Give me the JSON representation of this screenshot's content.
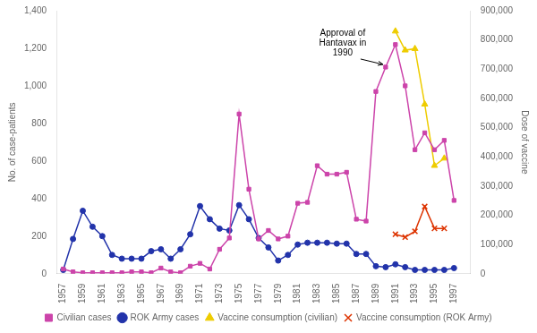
{
  "chart_data": {
    "type": "line",
    "x": [
      1957,
      1958,
      1959,
      1960,
      1961,
      1962,
      1963,
      1964,
      1965,
      1966,
      1967,
      1968,
      1969,
      1970,
      1971,
      1972,
      1973,
      1974,
      1975,
      1976,
      1977,
      1978,
      1979,
      1980,
      1981,
      1982,
      1983,
      1984,
      1985,
      1986,
      1987,
      1988,
      1989,
      1990,
      1991,
      1992,
      1993,
      1994,
      1995,
      1996,
      1997,
      1998
    ],
    "series": [
      {
        "name": "Civilian cases",
        "color": "#cc44aa",
        "marker": "square",
        "values": [
          25,
          10,
          5,
          5,
          5,
          5,
          5,
          10,
          10,
          5,
          30,
          10,
          5,
          40,
          55,
          25,
          130,
          190,
          850,
          450,
          185,
          230,
          185,
          200,
          375,
          380,
          575,
          530,
          530,
          540,
          290,
          280,
          970,
          1100,
          1220,
          1000,
          660,
          750,
          660,
          710,
          390,
          null
        ]
      },
      {
        "name": "ROK Army cases",
        "color": "#2233aa",
        "marker": "circle",
        "values": [
          20,
          185,
          335,
          250,
          200,
          100,
          80,
          80,
          80,
          120,
          130,
          80,
          130,
          210,
          360,
          290,
          240,
          230,
          365,
          290,
          190,
          140,
          70,
          100,
          155,
          165,
          165,
          165,
          160,
          160,
          105,
          105,
          40,
          35,
          50,
          35,
          20,
          20,
          20,
          20,
          30,
          null
        ]
      },
      {
        "name": "Vaccine consumption (civilian)",
        "color": "#eecc00",
        "marker": "triangle",
        "axis": "y2",
        "values": [
          null,
          null,
          null,
          null,
          null,
          null,
          null,
          null,
          null,
          null,
          null,
          null,
          null,
          null,
          null,
          null,
          null,
          null,
          null,
          null,
          null,
          null,
          null,
          null,
          null,
          null,
          null,
          null,
          null,
          null,
          null,
          null,
          null,
          null,
          830000,
          765000,
          770000,
          580000,
          370000,
          395000,
          null,
          null
        ]
      },
      {
        "name": "Vaccine consumption (ROK Army)",
        "color": "#dd3300",
        "marker": "x",
        "axis": "y2",
        "values": [
          null,
          null,
          null,
          null,
          null,
          null,
          null,
          null,
          null,
          null,
          null,
          null,
          null,
          null,
          null,
          null,
          null,
          null,
          null,
          null,
          null,
          null,
          null,
          null,
          null,
          null,
          null,
          null,
          null,
          null,
          null,
          null,
          null,
          null,
          135000,
          125000,
          145000,
          230000,
          155000,
          155000,
          null,
          null
        ]
      }
    ],
    "xlim": [
      1956.3,
      1998.7
    ],
    "xticks": [
      1957,
      1959,
      1961,
      1963,
      1965,
      1967,
      1969,
      1971,
      1973,
      1975,
      1977,
      1979,
      1981,
      1983,
      1985,
      1987,
      1989,
      1991,
      1993,
      1995,
      1997
    ],
    "ylabel": "No. of case-patients",
    "ylim": [
      0,
      1400
    ],
    "yticks": [
      0,
      200,
      400,
      600,
      800,
      {
        "value": 1000,
        "label": "1,000"
      },
      {
        "value": 1200,
        "label": "1,200"
      },
      {
        "value": 1400,
        "label": "1,400"
      }
    ],
    "y2label": "Dose of vaccine",
    "y2lim": [
      0,
      900000
    ],
    "y2ticks": [
      0,
      {
        "value": 100000,
        "label": "100,000"
      },
      {
        "value": 200000,
        "label": "200,000"
      },
      {
        "value": 300000,
        "label": "300,000"
      },
      {
        "value": 400000,
        "label": "400,000"
      },
      {
        "value": 500000,
        "label": "500,000"
      },
      {
        "value": 600000,
        "label": "600,000"
      },
      {
        "value": 700000,
        "label": "700,000"
      },
      {
        "value": 800000,
        "label": "800,000"
      },
      {
        "value": 900000,
        "label": "900,000"
      }
    ],
    "grid": false,
    "legend": "bottom",
    "annotations": [
      {
        "text": "Approval of\nHantavax in\n1990",
        "x": 1990,
        "y": 1100
      }
    ]
  }
}
